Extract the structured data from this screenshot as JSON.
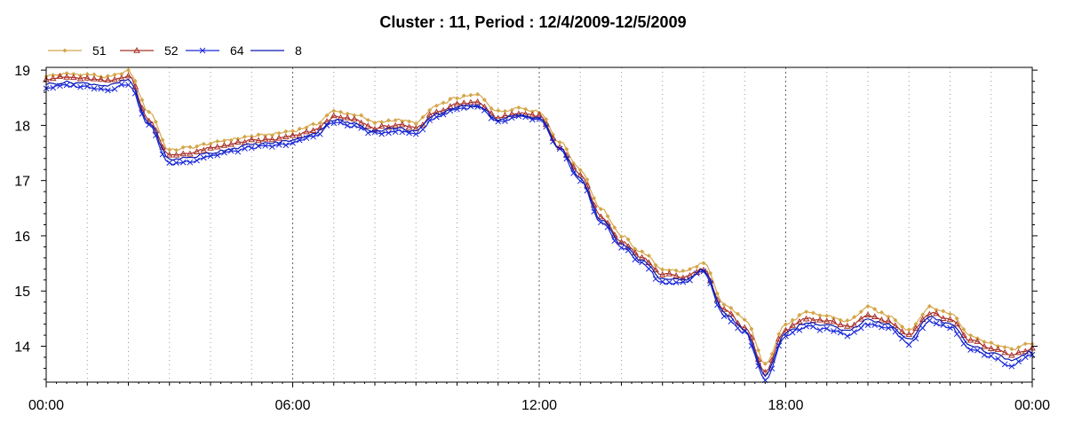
{
  "colors": {
    "s51": "#d4a64a",
    "s52": "#a83028",
    "s64": "#1a28d8",
    "s8": "#0a18b0",
    "frame": "#000000",
    "grid": "#555555"
  },
  "chart_data": {
    "type": "line",
    "title": "Cluster : 11, Period : 12/4/2009-12/5/2009",
    "xlabel": "",
    "ylabel": "",
    "x_ticks": [
      "00:00",
      "06:00",
      "12:00",
      "18:00",
      "00:00"
    ],
    "y_ticks": [
      "14",
      "15",
      "16",
      "17",
      "18",
      "19"
    ],
    "ylim": [
      13.35,
      19.05
    ],
    "xlim_hours": [
      0,
      24
    ],
    "grid": "dotted vertical lines every 1 hour",
    "legend_position": "top-left",
    "legend": [
      {
        "name": "51",
        "marker": "diamond",
        "color_key": "s51"
      },
      {
        "name": "52",
        "marker": "triangle",
        "color_key": "s52"
      },
      {
        "name": "64",
        "marker": "x",
        "color_key": "s64"
      },
      {
        "name": "8",
        "marker": "none",
        "color_key": "s8"
      }
    ],
    "series": [
      {
        "name": "51",
        "hours": [
          0,
          0.5,
          1,
          1.5,
          2,
          2.5,
          3,
          3.5,
          4,
          4.5,
          5,
          5.5,
          6,
          6.5,
          7,
          7.5,
          8,
          8.5,
          9,
          9.5,
          10,
          10.5,
          11,
          11.5,
          12,
          12.5,
          13,
          13.5,
          14,
          14.5,
          15,
          15.5,
          16,
          16.5,
          17,
          17.5,
          18,
          18.5,
          19,
          19.5,
          20,
          20.5,
          21,
          21.5,
          22,
          22.5,
          23,
          23.5,
          24
        ],
        "values": [
          18.9,
          18.93,
          18.92,
          18.87,
          18.98,
          18.25,
          17.55,
          17.6,
          17.67,
          17.75,
          17.8,
          17.84,
          17.9,
          18.0,
          18.25,
          18.2,
          18.05,
          18.1,
          18.05,
          18.35,
          18.5,
          18.55,
          18.25,
          18.32,
          18.25,
          17.7,
          17.2,
          16.5,
          16.0,
          15.7,
          15.4,
          15.35,
          15.5,
          14.75,
          14.5,
          13.7,
          14.4,
          14.6,
          14.55,
          14.45,
          14.7,
          14.55,
          14.3,
          14.7,
          14.6,
          14.2,
          14.05,
          13.95,
          14.05
        ]
      },
      {
        "name": "52",
        "hours": [
          0,
          0.5,
          1,
          1.5,
          2,
          2.5,
          3,
          3.5,
          4,
          4.5,
          5,
          5.5,
          6,
          6.5,
          7,
          7.5,
          8,
          8.5,
          9,
          9.5,
          10,
          10.5,
          11,
          11.5,
          12,
          12.5,
          13,
          13.5,
          14,
          14.5,
          15,
          15.5,
          16,
          16.5,
          17,
          17.5,
          18,
          18.5,
          19,
          19.5,
          20,
          20.5,
          21,
          21.5,
          22,
          22.5,
          23,
          23.5,
          24
        ],
        "values": [
          18.85,
          18.87,
          18.84,
          18.8,
          18.9,
          18.1,
          17.45,
          17.5,
          17.58,
          17.66,
          17.72,
          17.74,
          17.8,
          17.9,
          18.15,
          18.1,
          17.95,
          18.0,
          17.95,
          18.25,
          18.38,
          18.42,
          18.15,
          18.22,
          18.18,
          17.6,
          17.1,
          16.35,
          15.9,
          15.6,
          15.3,
          15.25,
          15.4,
          14.65,
          14.35,
          13.55,
          14.3,
          14.5,
          14.45,
          14.35,
          14.55,
          14.45,
          14.2,
          14.6,
          14.5,
          14.1,
          13.95,
          13.85,
          13.95
        ]
      },
      {
        "name": "64",
        "hours": [
          0,
          0.5,
          1,
          1.5,
          2,
          2.5,
          3,
          3.5,
          4,
          4.5,
          5,
          5.5,
          6,
          6.5,
          7,
          7.5,
          8,
          8.5,
          9,
          9.5,
          10,
          10.5,
          11,
          11.5,
          12,
          12.5,
          13,
          13.5,
          14,
          14.5,
          15,
          15.5,
          16,
          16.5,
          17,
          17.5,
          18,
          18.5,
          19,
          19.5,
          20,
          20.5,
          21,
          21.5,
          22,
          22.5,
          23,
          23.5,
          24
        ],
        "values": [
          18.68,
          18.72,
          18.7,
          18.65,
          18.75,
          18.0,
          17.3,
          17.35,
          17.45,
          17.52,
          17.6,
          17.62,
          17.68,
          17.8,
          18.05,
          17.98,
          17.85,
          17.9,
          17.85,
          18.15,
          18.3,
          18.33,
          18.05,
          18.15,
          18.1,
          17.55,
          17.0,
          16.25,
          15.8,
          15.5,
          15.15,
          15.15,
          15.35,
          14.55,
          14.25,
          13.4,
          14.2,
          14.35,
          14.3,
          14.2,
          14.4,
          14.35,
          14.05,
          14.45,
          14.35,
          13.95,
          13.8,
          13.65,
          13.85
        ]
      },
      {
        "name": "8",
        "hours": [
          0,
          0.5,
          1,
          1.5,
          2,
          2.5,
          3,
          3.5,
          4,
          4.5,
          5,
          5.5,
          6,
          6.5,
          7,
          7.5,
          8,
          8.5,
          9,
          9.5,
          10,
          10.5,
          11,
          11.5,
          12,
          12.5,
          13,
          13.5,
          14,
          14.5,
          15,
          15.5,
          16,
          16.5,
          17,
          17.5,
          18,
          18.5,
          19,
          19.5,
          20,
          20.5,
          21,
          21.5,
          22,
          22.5,
          23,
          23.5,
          24
        ],
        "values": [
          18.75,
          18.78,
          18.76,
          18.72,
          18.82,
          18.05,
          17.38,
          17.42,
          17.5,
          17.58,
          17.65,
          17.68,
          17.73,
          17.85,
          18.1,
          18.03,
          17.9,
          17.95,
          17.9,
          18.2,
          18.33,
          18.37,
          18.1,
          18.18,
          18.14,
          17.58,
          17.05,
          16.3,
          15.85,
          15.55,
          15.22,
          15.2,
          15.38,
          14.6,
          14.3,
          13.48,
          14.25,
          14.42,
          14.38,
          14.27,
          14.48,
          14.4,
          14.12,
          14.52,
          14.42,
          14.02,
          13.88,
          13.75,
          13.9
        ]
      }
    ]
  }
}
